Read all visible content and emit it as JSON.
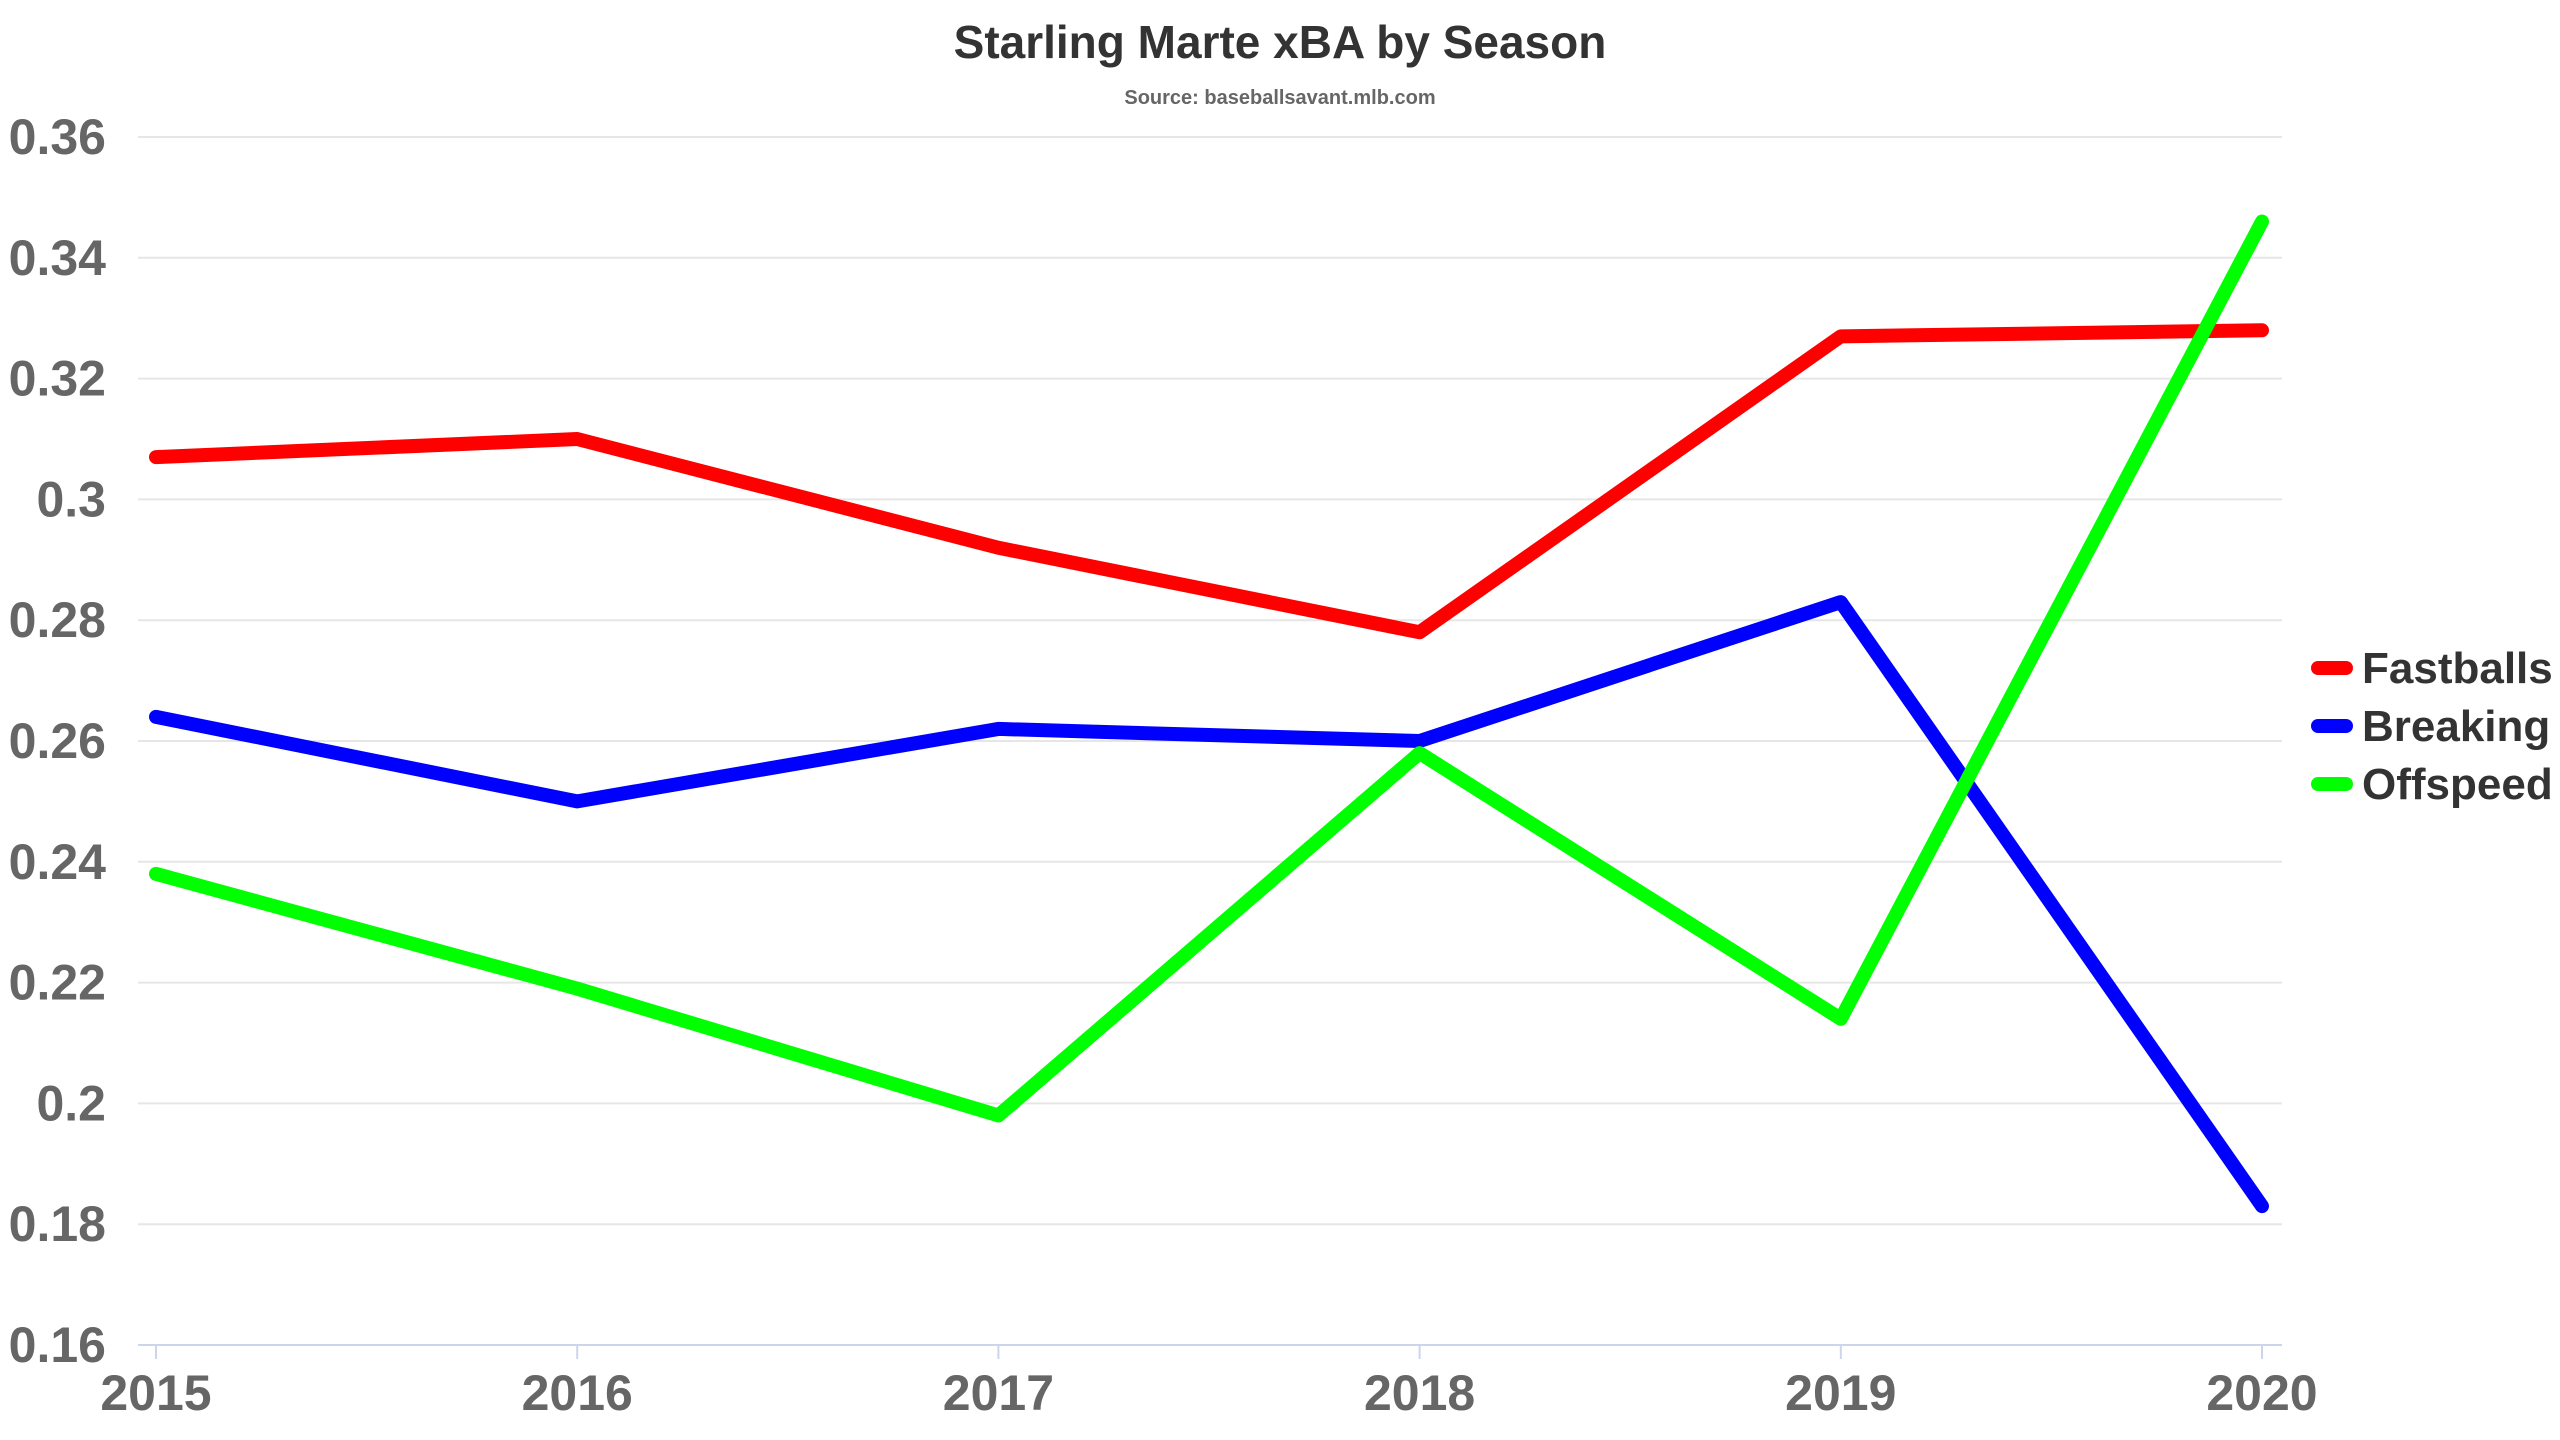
{
  "chart_data": {
    "type": "line",
    "title": "Starling Marte xBA by Season",
    "subtitle": "Source: baseballsavant.mlb.com",
    "categories": [
      "2015",
      "2016",
      "2017",
      "2018",
      "2019",
      "2020"
    ],
    "y_ticks": [
      "0.16",
      "0.18",
      "0.2",
      "0.22",
      "0.24",
      "0.26",
      "0.28",
      "0.3",
      "0.32",
      "0.34",
      "0.36"
    ],
    "ylim": [
      0.16,
      0.36
    ],
    "grid": true,
    "legend_position": "right",
    "series": [
      {
        "name": "Fastballs",
        "color": "#ff0000",
        "values": [
          0.307,
          0.31,
          0.292,
          0.278,
          0.327,
          0.328
        ]
      },
      {
        "name": "Breaking",
        "color": "#0000ff",
        "values": [
          0.264,
          0.25,
          0.262,
          0.26,
          0.283,
          0.183
        ]
      },
      {
        "name": "Offspeed",
        "color": "#00ff00",
        "values": [
          0.238,
          0.219,
          0.198,
          0.258,
          0.214,
          0.346
        ]
      }
    ]
  }
}
